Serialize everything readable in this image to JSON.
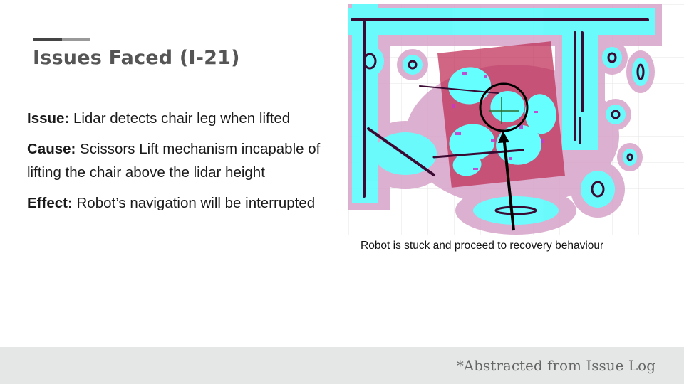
{
  "slide": {
    "title": "Issues Faced (I-21)",
    "issue_label": "Issue:",
    "issue_text": " Lidar detects chair leg when lifted",
    "cause_label": "Cause:",
    "cause_text": " Scissors Lift mechanism incapable of lifting the chair above the lidar height",
    "effect_label": "Effect:",
    "effect_text": " Robot’s navigation will be interrupted",
    "image_caption": "Robot is stuck and proceed to recovery behaviour",
    "footer_note": "*Abstracted from Issue Log"
  },
  "colors": {
    "title": "#555555",
    "accent_dark": "#444444",
    "accent_light": "#999999",
    "footer_bg": "#e5e7e7",
    "map_inflation_pink": "#d9a8cc",
    "map_cyan": "#66ffff",
    "map_obstacle": "#3a0a33",
    "map_highlight": "#c0335a"
  }
}
